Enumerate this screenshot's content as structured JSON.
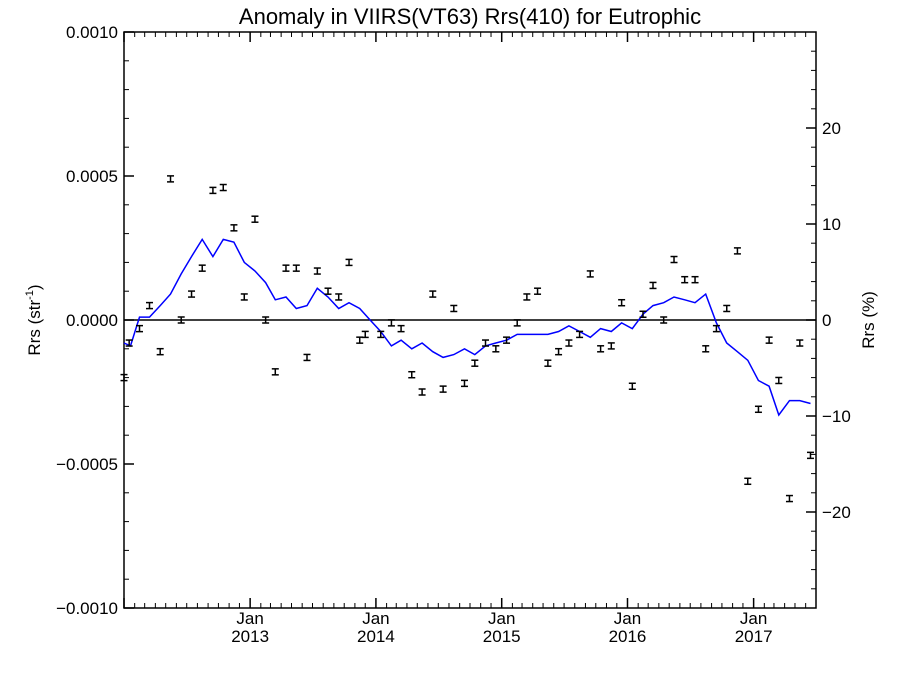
{
  "chart_data": {
    "type": "scatter",
    "title": "Anomaly in VIIRS(VT63) Rrs(410) for Eutrophic",
    "ylabel_left": "Rrs (str",
    "ylabel_left_sup": "-1",
    "ylabel_left_close": ")",
    "ylabel_right": "Rrs (%)",
    "xlim": [
      "2012-01-01",
      "2017-07-01"
    ],
    "ylim_left": [
      -0.001,
      0.001
    ],
    "ylim_right": [
      -30,
      30
    ],
    "left_ticks": [
      {
        "v": 0.001,
        "label": "0.0010"
      },
      {
        "v": 0.0005,
        "label": "0.0005"
      },
      {
        "v": 0.0,
        "label": "0.0000"
      },
      {
        "v": -0.0005,
        "label": "−0.0005"
      },
      {
        "v": -0.001,
        "label": "−0.0010"
      }
    ],
    "right_ticks": [
      {
        "v": 20,
        "label": "20"
      },
      {
        "v": 10,
        "label": "10"
      },
      {
        "v": 0,
        "label": "0"
      },
      {
        "v": -10,
        "label": "−10"
      },
      {
        "v": -20,
        "label": "−20"
      }
    ],
    "x_ticks": [
      {
        "date": "2013-01-01",
        "month": "Jan",
        "year": "2013"
      },
      {
        "date": "2014-01-01",
        "month": "Jan",
        "year": "2014"
      },
      {
        "date": "2015-01-01",
        "month": "Jan",
        "year": "2015"
      },
      {
        "date": "2016-01-01",
        "month": "Jan",
        "year": "2016"
      },
      {
        "date": "2017-01-01",
        "month": "Jan",
        "year": "2017"
      }
    ],
    "grid": false,
    "zero_line": true,
    "series": [
      {
        "kind": "errorbar",
        "color": "#000000",
        "points": [
          {
            "x": "2012-01-01",
            "y": -0.0002
          },
          {
            "x": "2012-01-16",
            "y": -8e-05
          },
          {
            "x": "2012-02-15",
            "y": -3e-05
          },
          {
            "x": "2012-03-15",
            "y": 5e-05
          },
          {
            "x": "2012-04-15",
            "y": -0.00011
          },
          {
            "x": "2012-05-15",
            "y": 0.00049
          },
          {
            "x": "2012-06-15",
            "y": 0.0
          },
          {
            "x": "2012-07-15",
            "y": 9e-05
          },
          {
            "x": "2012-08-15",
            "y": 0.00018
          },
          {
            "x": "2012-09-15",
            "y": 0.00045
          },
          {
            "x": "2012-10-15",
            "y": 0.00046
          },
          {
            "x": "2012-11-15",
            "y": 0.00032
          },
          {
            "x": "2012-12-15",
            "y": 8e-05
          },
          {
            "x": "2013-01-15",
            "y": 0.00035
          },
          {
            "x": "2013-02-15",
            "y": 0.0
          },
          {
            "x": "2013-03-15",
            "y": -0.00018
          },
          {
            "x": "2013-04-15",
            "y": 0.00018
          },
          {
            "x": "2013-05-15",
            "y": 0.00018
          },
          {
            "x": "2013-06-15",
            "y": -0.00013
          },
          {
            "x": "2013-07-15",
            "y": 0.00017
          },
          {
            "x": "2013-08-15",
            "y": 0.0001
          },
          {
            "x": "2013-09-15",
            "y": 8e-05
          },
          {
            "x": "2013-10-15",
            "y": 0.0002
          },
          {
            "x": "2013-11-15",
            "y": -7e-05
          },
          {
            "x": "2013-12-01",
            "y": -5e-05
          },
          {
            "x": "2014-01-15",
            "y": -5e-05
          },
          {
            "x": "2014-02-15",
            "y": -1e-05
          },
          {
            "x": "2014-03-15",
            "y": -3e-05
          },
          {
            "x": "2014-04-15",
            "y": -0.00019
          },
          {
            "x": "2014-05-15",
            "y": -0.00025
          },
          {
            "x": "2014-06-15",
            "y": 9e-05
          },
          {
            "x": "2014-07-15",
            "y": -0.00024
          },
          {
            "x": "2014-08-15",
            "y": 4e-05
          },
          {
            "x": "2014-09-15",
            "y": -0.00022
          },
          {
            "x": "2014-10-15",
            "y": -0.00015
          },
          {
            "x": "2014-11-15",
            "y": -8e-05
          },
          {
            "x": "2014-12-15",
            "y": -0.0001
          },
          {
            "x": "2015-01-15",
            "y": -7e-05
          },
          {
            "x": "2015-02-15",
            "y": -1e-05
          },
          {
            "x": "2015-03-15",
            "y": 8e-05
          },
          {
            "x": "2015-04-15",
            "y": 0.0001
          },
          {
            "x": "2015-05-15",
            "y": -0.00015
          },
          {
            "x": "2015-06-15",
            "y": -0.00011
          },
          {
            "x": "2015-07-15",
            "y": -8e-05
          },
          {
            "x": "2015-08-15",
            "y": -5e-05
          },
          {
            "x": "2015-09-15",
            "y": 0.00016
          },
          {
            "x": "2015-10-15",
            "y": -0.0001
          },
          {
            "x": "2015-11-15",
            "y": -9e-05
          },
          {
            "x": "2015-12-15",
            "y": 6e-05
          },
          {
            "x": "2016-01-15",
            "y": -0.00023
          },
          {
            "x": "2016-02-15",
            "y": 2e-05
          },
          {
            "x": "2016-03-15",
            "y": 0.00012
          },
          {
            "x": "2016-04-15",
            "y": 0.0
          },
          {
            "x": "2016-05-15",
            "y": 0.00021
          },
          {
            "x": "2016-06-15",
            "y": 0.00014
          },
          {
            "x": "2016-07-15",
            "y": 0.00014
          },
          {
            "x": "2016-08-15",
            "y": -0.0001
          },
          {
            "x": "2016-09-15",
            "y": -3e-05
          },
          {
            "x": "2016-10-15",
            "y": 4e-05
          },
          {
            "x": "2016-11-15",
            "y": 0.00024
          },
          {
            "x": "2016-12-15",
            "y": -0.00056
          },
          {
            "x": "2017-01-15",
            "y": -0.00031
          },
          {
            "x": "2017-02-15",
            "y": -7e-05
          },
          {
            "x": "2017-03-15",
            "y": -0.00021
          },
          {
            "x": "2017-04-15",
            "y": -0.00062
          },
          {
            "x": "2017-05-15",
            "y": -8e-05
          },
          {
            "x": "2017-06-15",
            "y": -0.00047
          }
        ]
      },
      {
        "kind": "line",
        "color": "#0000ff",
        "points": [
          {
            "x": "2012-01-01",
            "y": -8e-05
          },
          {
            "x": "2012-01-20",
            "y": -9e-05
          },
          {
            "x": "2012-02-15",
            "y": 1e-05
          },
          {
            "x": "2012-03-15",
            "y": 1e-05
          },
          {
            "x": "2012-04-15",
            "y": 5e-05
          },
          {
            "x": "2012-05-15",
            "y": 9e-05
          },
          {
            "x": "2012-06-15",
            "y": 0.00016
          },
          {
            "x": "2012-07-15",
            "y": 0.00022
          },
          {
            "x": "2012-08-15",
            "y": 0.00028
          },
          {
            "x": "2012-09-15",
            "y": 0.00022
          },
          {
            "x": "2012-10-15",
            "y": 0.00028
          },
          {
            "x": "2012-11-15",
            "y": 0.00027
          },
          {
            "x": "2012-12-15",
            "y": 0.0002
          },
          {
            "x": "2013-01-15",
            "y": 0.00017
          },
          {
            "x": "2013-02-15",
            "y": 0.00013
          },
          {
            "x": "2013-03-15",
            "y": 7e-05
          },
          {
            "x": "2013-04-15",
            "y": 8e-05
          },
          {
            "x": "2013-05-15",
            "y": 4e-05
          },
          {
            "x": "2013-06-15",
            "y": 5e-05
          },
          {
            "x": "2013-07-15",
            "y": 0.00011
          },
          {
            "x": "2013-08-15",
            "y": 8e-05
          },
          {
            "x": "2013-09-15",
            "y": 4e-05
          },
          {
            "x": "2013-10-15",
            "y": 6e-05
          },
          {
            "x": "2013-11-15",
            "y": 4e-05
          },
          {
            "x": "2013-12-15",
            "y": 0.0
          },
          {
            "x": "2014-01-15",
            "y": -4e-05
          },
          {
            "x": "2014-02-15",
            "y": -9e-05
          },
          {
            "x": "2014-03-15",
            "y": -7e-05
          },
          {
            "x": "2014-04-15",
            "y": -0.0001
          },
          {
            "x": "2014-05-15",
            "y": -8e-05
          },
          {
            "x": "2014-06-15",
            "y": -0.00011
          },
          {
            "x": "2014-07-15",
            "y": -0.00013
          },
          {
            "x": "2014-08-15",
            "y": -0.00012
          },
          {
            "x": "2014-09-15",
            "y": -0.0001
          },
          {
            "x": "2014-10-15",
            "y": -0.00012
          },
          {
            "x": "2014-11-15",
            "y": -9e-05
          },
          {
            "x": "2014-12-15",
            "y": -8e-05
          },
          {
            "x": "2015-01-15",
            "y": -7e-05
          },
          {
            "x": "2015-02-15",
            "y": -5e-05
          },
          {
            "x": "2015-03-15",
            "y": -5e-05
          },
          {
            "x": "2015-04-15",
            "y": -5e-05
          },
          {
            "x": "2015-05-15",
            "y": -5e-05
          },
          {
            "x": "2015-06-15",
            "y": -4e-05
          },
          {
            "x": "2015-07-15",
            "y": -2e-05
          },
          {
            "x": "2015-08-15",
            "y": -4e-05
          },
          {
            "x": "2015-09-15",
            "y": -6e-05
          },
          {
            "x": "2015-10-15",
            "y": -3e-05
          },
          {
            "x": "2015-11-15",
            "y": -4e-05
          },
          {
            "x": "2015-12-15",
            "y": -1e-05
          },
          {
            "x": "2016-01-15",
            "y": -3e-05
          },
          {
            "x": "2016-02-15",
            "y": 2e-05
          },
          {
            "x": "2016-03-15",
            "y": 5e-05
          },
          {
            "x": "2016-04-15",
            "y": 6e-05
          },
          {
            "x": "2016-05-15",
            "y": 8e-05
          },
          {
            "x": "2016-06-15",
            "y": 7e-05
          },
          {
            "x": "2016-07-15",
            "y": 6e-05
          },
          {
            "x": "2016-08-15",
            "y": 9e-05
          },
          {
            "x": "2016-09-15",
            "y": -1e-05
          },
          {
            "x": "2016-10-15",
            "y": -8e-05
          },
          {
            "x": "2016-11-15",
            "y": -0.00011
          },
          {
            "x": "2016-12-15",
            "y": -0.00014
          },
          {
            "x": "2017-01-15",
            "y": -0.00021
          },
          {
            "x": "2017-02-15",
            "y": -0.00023
          },
          {
            "x": "2017-03-15",
            "y": -0.00033
          },
          {
            "x": "2017-04-15",
            "y": -0.00028
          },
          {
            "x": "2017-05-15",
            "y": -0.00028
          },
          {
            "x": "2017-06-15",
            "y": -0.00029
          }
        ]
      }
    ]
  }
}
